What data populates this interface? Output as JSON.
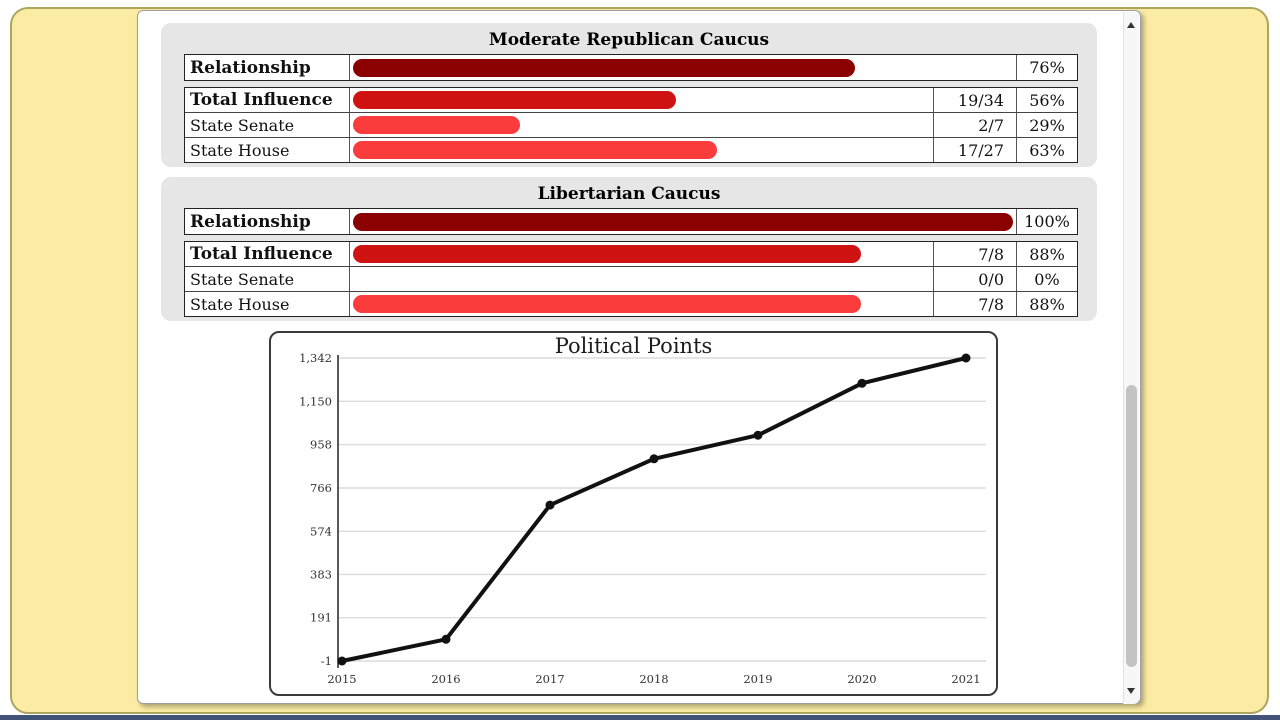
{
  "colors": {
    "page_yellow": "#FBEBA3",
    "card_border": "#ABA55E",
    "bottom_bar_blue": "#405377",
    "panel_gray": "#E6E6E6",
    "relationship_bar": "#8B0000",
    "total_influence_bar": "#CE1312",
    "chamber_bar": "#FA3C3C",
    "chart_line": "#111111"
  },
  "caucuses": [
    {
      "title": "Moderate Republican Caucus",
      "relationship": {
        "label": "Relationship",
        "percent": "76%",
        "percent_num": 76
      },
      "rows": [
        {
          "label": "Total Influence",
          "fraction": "19/34",
          "percent": "56%",
          "percent_num": 56
        },
        {
          "label": "State Senate",
          "fraction": "2/7",
          "percent": "29%",
          "percent_num": 29
        },
        {
          "label": "State House",
          "fraction": "17/27",
          "percent": "63%",
          "percent_num": 63
        }
      ]
    },
    {
      "title": "Libertarian Caucus",
      "relationship": {
        "label": "Relationship",
        "percent": "100%",
        "percent_num": 100
      },
      "rows": [
        {
          "label": "Total Influence",
          "fraction": "7/8",
          "percent": "88%",
          "percent_num": 88
        },
        {
          "label": "State Senate",
          "fraction": "0/0",
          "percent": "0%",
          "percent_num": 0
        },
        {
          "label": "State House",
          "fraction": "7/8",
          "percent": "88%",
          "percent_num": 88
        }
      ]
    }
  ],
  "chart_data": {
    "type": "line",
    "title": "Political Points",
    "categories": [
      "2015",
      "2016",
      "2017",
      "2018",
      "2019",
      "2020",
      "2021"
    ],
    "values": [
      -1,
      95,
      690,
      895,
      1000,
      1230,
      1342
    ],
    "ylim": [
      -1,
      1342
    ],
    "ytick_values": [
      -1,
      191,
      383,
      574,
      766,
      958,
      1150,
      1342
    ],
    "ytick_labels": [
      "-1",
      "191",
      "383",
      "574",
      "766",
      "958",
      "1,150",
      "1,342"
    ],
    "xlabel": "",
    "ylabel": "",
    "grid": "on",
    "legend": "none",
    "marker": "circle"
  }
}
